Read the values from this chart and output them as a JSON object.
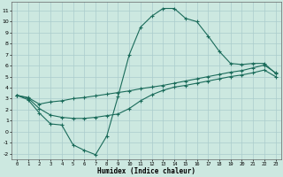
{
  "xlabel": "Humidex (Indice chaleur)",
  "bg_color": "#cce8e0",
  "grid_color": "#aacccc",
  "line_color": "#1a6b5a",
  "xlim": [
    -0.5,
    23.5
  ],
  "ylim": [
    -2.5,
    11.8
  ],
  "xticks": [
    0,
    1,
    2,
    3,
    4,
    5,
    6,
    7,
    8,
    9,
    10,
    11,
    12,
    13,
    14,
    15,
    16,
    17,
    18,
    19,
    20,
    21,
    22,
    23
  ],
  "yticks": [
    -2,
    -1,
    0,
    1,
    2,
    3,
    4,
    5,
    6,
    7,
    8,
    9,
    10,
    11
  ],
  "line1_x": [
    0,
    1,
    2,
    3,
    4,
    5,
    6,
    7,
    8,
    9,
    10,
    11,
    12,
    13,
    14,
    15,
    16,
    17,
    18,
    19,
    20,
    21,
    22,
    23
  ],
  "line1_y": [
    3.3,
    2.9,
    1.7,
    0.7,
    0.6,
    -1.2,
    -1.7,
    -2.1,
    -0.4,
    3.2,
    7.0,
    9.5,
    10.5,
    11.2,
    11.2,
    10.3,
    10.0,
    8.7,
    7.3,
    6.2,
    6.1,
    6.2,
    6.2,
    5.3
  ],
  "line2_x": [
    0,
    1,
    2,
    3,
    4,
    5,
    6,
    7,
    8,
    9,
    10,
    11,
    12,
    13,
    14,
    15,
    16,
    17,
    18,
    19,
    20,
    21,
    22,
    23
  ],
  "line2_y": [
    3.3,
    3.1,
    2.5,
    2.7,
    2.8,
    3.0,
    3.1,
    3.25,
    3.4,
    3.55,
    3.7,
    3.9,
    4.05,
    4.2,
    4.4,
    4.6,
    4.8,
    5.0,
    5.2,
    5.4,
    5.55,
    5.8,
    6.05,
    5.35
  ],
  "line3_x": [
    0,
    1,
    2,
    3,
    4,
    5,
    6,
    7,
    8,
    9,
    10,
    11,
    12,
    13,
    14,
    15,
    16,
    17,
    18,
    19,
    20,
    21,
    22,
    23
  ],
  "line3_y": [
    3.3,
    3.05,
    2.1,
    1.5,
    1.3,
    1.2,
    1.2,
    1.3,
    1.45,
    1.6,
    2.1,
    2.8,
    3.35,
    3.75,
    4.05,
    4.2,
    4.4,
    4.6,
    4.8,
    5.0,
    5.15,
    5.35,
    5.6,
    5.0
  ]
}
